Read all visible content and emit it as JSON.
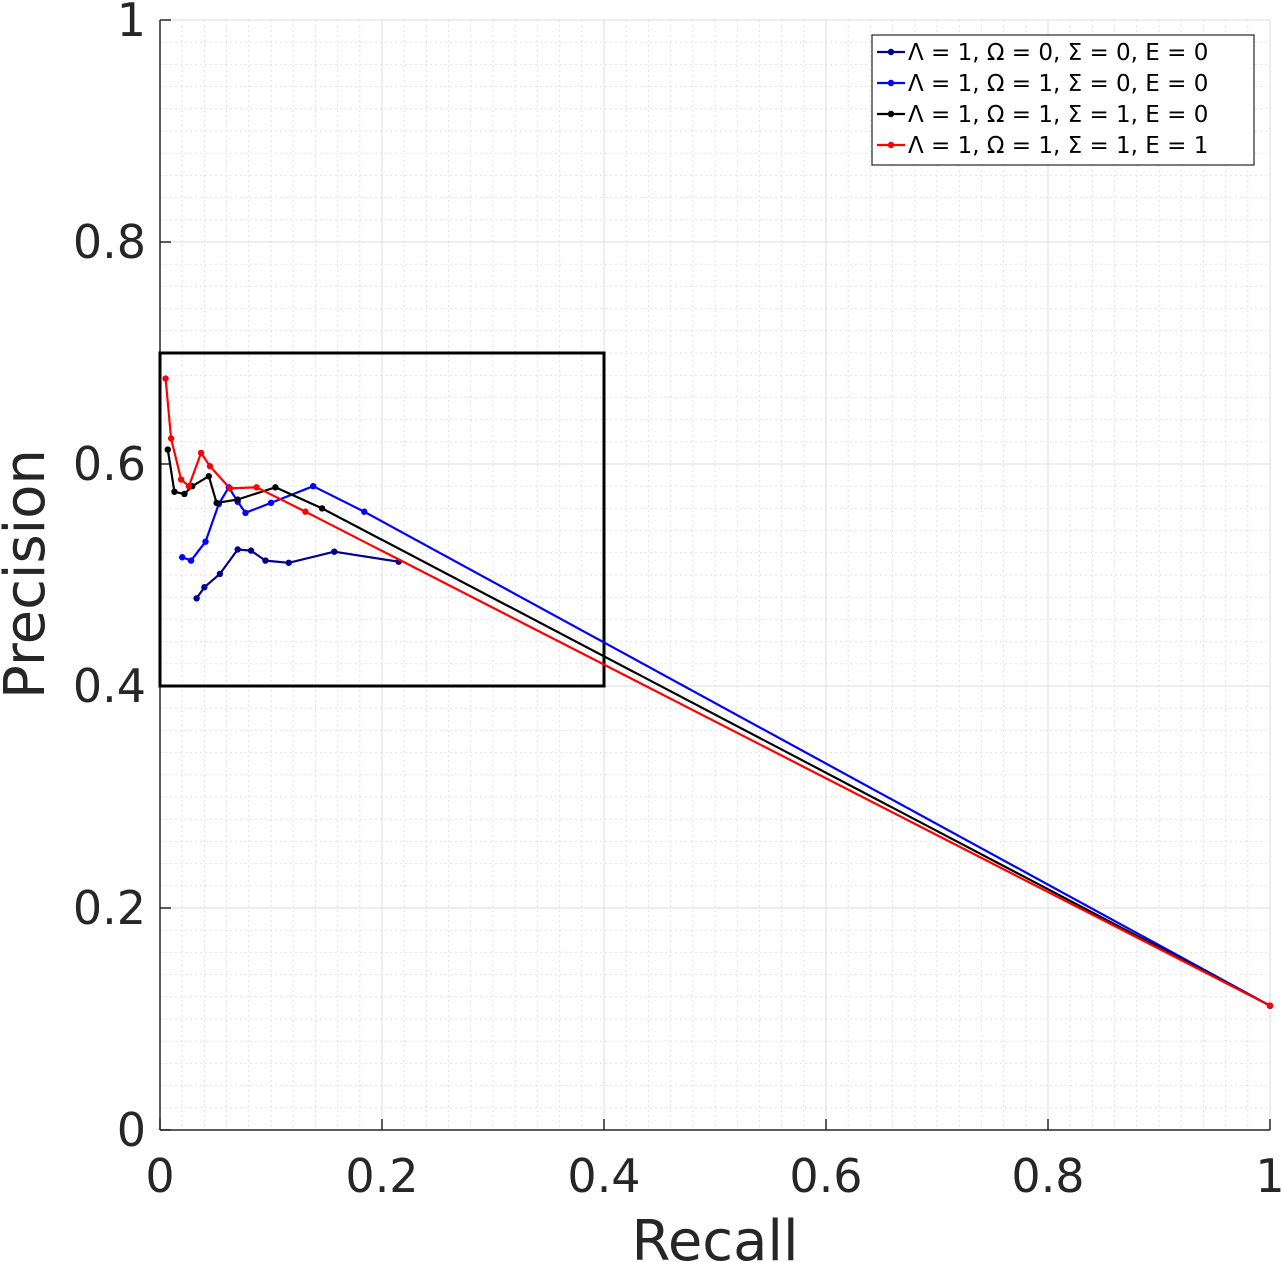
{
  "chart_data": {
    "type": "line",
    "xlabel": "Recall",
    "ylabel": "Precision",
    "xlim": [
      0,
      1
    ],
    "ylim": [
      0,
      1
    ],
    "xticks": [
      "0",
      "0.2",
      "0.4",
      "0.6",
      "0.8",
      "1"
    ],
    "yticks": [
      "0",
      "0.2",
      "0.4",
      "0.6",
      "0.8",
      "1"
    ],
    "grid": true,
    "minor_grid": true,
    "legend_position": "top-right",
    "zoom_box": {
      "x": [
        0,
        0.4
      ],
      "y": [
        0.4,
        0.7
      ],
      "color": "#000000"
    },
    "series": [
      {
        "name": "Λ = 1, Ω = 0, Σ = 0, E = 0",
        "color": "#00008B",
        "x": [
          0.033,
          0.04,
          0.054,
          0.07,
          0.082,
          0.095,
          0.116,
          0.157,
          0.215
        ],
        "y": [
          0.479,
          0.489,
          0.501,
          0.523,
          0.522,
          0.513,
          0.511,
          0.521,
          0.512
        ]
      },
      {
        "name": "Λ = 1, Ω = 1, Σ = 0, E = 0",
        "color": "#0000FF",
        "x": [
          0.02,
          0.028,
          0.041,
          0.053,
          0.062,
          0.07,
          0.077,
          0.1,
          0.138,
          0.184,
          1.0
        ],
        "y": [
          0.516,
          0.513,
          0.53,
          0.564,
          0.579,
          0.566,
          0.556,
          0.565,
          0.58,
          0.557,
          0.112
        ]
      },
      {
        "name": "Λ = 1, Ω = 1, Σ = 1, E = 0",
        "color": "#000000",
        "x": [
          0.007,
          0.013,
          0.022,
          0.029,
          0.044,
          0.051,
          0.07,
          0.104,
          0.146,
          1.0
        ],
        "y": [
          0.613,
          0.575,
          0.573,
          0.58,
          0.589,
          0.565,
          0.568,
          0.579,
          0.56,
          0.112
        ]
      },
      {
        "name": "Λ = 1, Ω = 1, Σ = 1, E = 1",
        "color": "#FF0000",
        "x": [
          0.005,
          0.01,
          0.019,
          0.026,
          0.037,
          0.045,
          0.063,
          0.087,
          0.131,
          1.0
        ],
        "y": [
          0.677,
          0.623,
          0.586,
          0.58,
          0.61,
          0.598,
          0.578,
          0.579,
          0.557,
          0.112
        ]
      }
    ]
  }
}
